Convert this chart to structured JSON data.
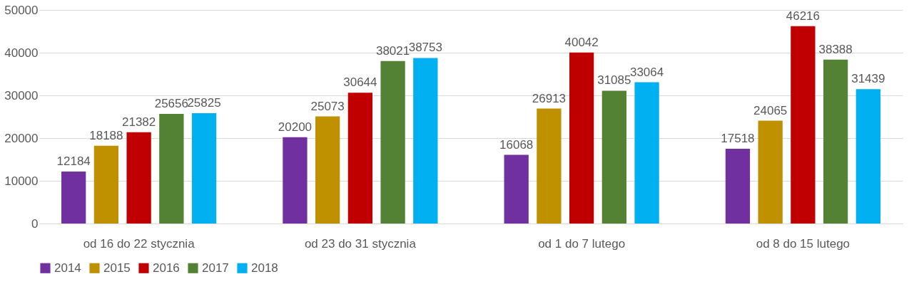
{
  "chart_data": {
    "type": "bar",
    "categories": [
      "od 16 do 22 stycznia",
      "od 23 do 31  stycznia",
      "od 1 do 7 lutego",
      "od 8 do 15 lutego"
    ],
    "series": [
      {
        "name": "2014",
        "color": "#7030a0",
        "values": [
          12184,
          20200,
          16068,
          17518
        ]
      },
      {
        "name": "2015",
        "color": "#bf9000",
        "values": [
          18188,
          25073,
          26913,
          24065
        ]
      },
      {
        "name": "2016",
        "color": "#c00000",
        "values": [
          21382,
          30644,
          40042,
          46216
        ]
      },
      {
        "name": "2017",
        "color": "#548235",
        "values": [
          25656,
          38021,
          31085,
          38388
        ]
      },
      {
        "name": "2018",
        "color": "#00b0f0",
        "values": [
          25825,
          38753,
          33064,
          31439
        ]
      }
    ],
    "ylim": [
      0,
      50000
    ],
    "yticks": [
      0,
      10000,
      20000,
      30000,
      40000,
      50000
    ],
    "grid": "y",
    "legend": "bottom",
    "data_labels": true
  }
}
